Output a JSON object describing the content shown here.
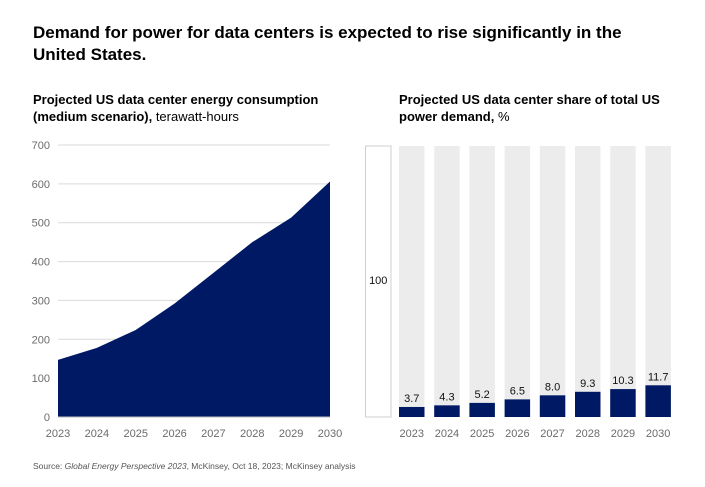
{
  "title": "Demand for power for data centers is expected to rise significantly in the United States.",
  "left_chart": {
    "title_bold": "Projected US data center energy consumption (medium scenario),",
    "title_unit": " terawatt-hours"
  },
  "right_chart": {
    "title_bold": "Projected US data center share of total US power demand,",
    "title_unit": " %",
    "total_label": "100"
  },
  "source": {
    "prefix": "Source: ",
    "italic": "Global Energy Perspective 2023",
    "suffix": ", McKinsey, Oct 18, 2023; McKinsey analysis"
  },
  "colors": {
    "navy": "#001965",
    "background_bar": "#ececec",
    "gridline": "#d9d9d9"
  },
  "chart_data": [
    {
      "type": "area",
      "title": "Projected US data center energy consumption (medium scenario), terawatt-hours",
      "x": [
        "2023",
        "2024",
        "2025",
        "2026",
        "2027",
        "2028",
        "2029",
        "2030"
      ],
      "series": [
        {
          "values": [
            147,
            178,
            224,
            292,
            371,
            450,
            513,
            606
          ]
        }
      ],
      "ylim": [
        0,
        700
      ],
      "yticks": [
        0,
        100,
        200,
        300,
        400,
        500,
        600,
        700
      ],
      "grid": true
    },
    {
      "type": "bar",
      "title": "Projected US data center share of total US power demand, %",
      "categories": [
        "2023",
        "2024",
        "2025",
        "2026",
        "2027",
        "2028",
        "2029",
        "2030"
      ],
      "values": [
        3.7,
        4.3,
        5.2,
        6.5,
        8.0,
        9.3,
        10.3,
        11.7
      ],
      "value_labels": [
        "3.7",
        "4.3",
        "5.2",
        "6.5",
        "8.0",
        "9.3",
        "10.3",
        "11.7"
      ],
      "ylim": [
        0,
        100
      ],
      "total": 100,
      "grid": false
    }
  ]
}
